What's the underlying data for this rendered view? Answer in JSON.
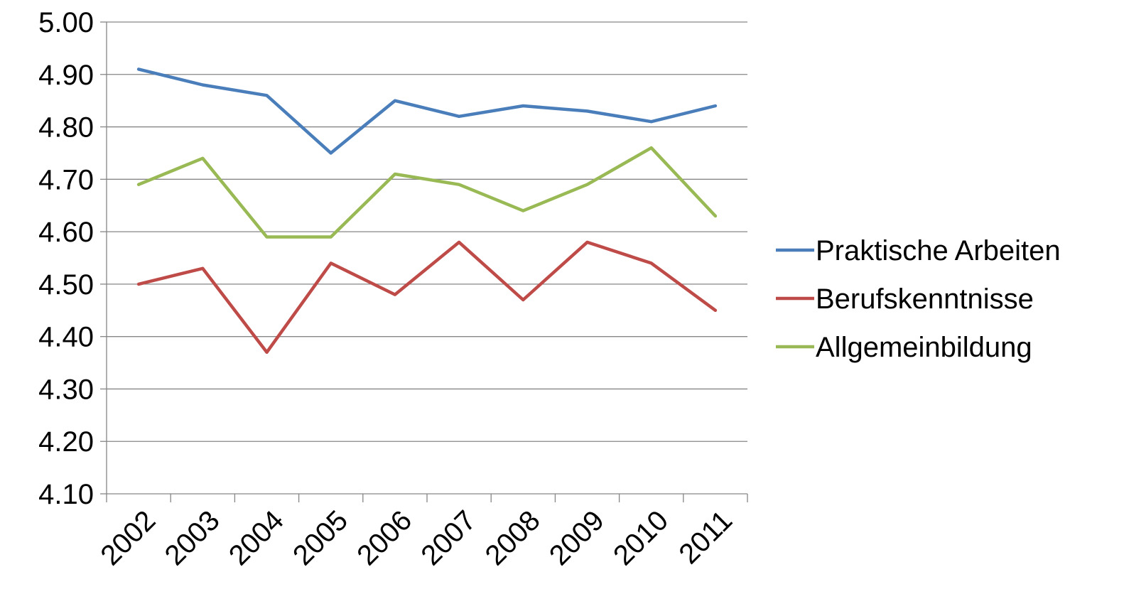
{
  "chart_data": {
    "type": "line",
    "title": "",
    "xlabel": "",
    "ylabel": "",
    "categories": [
      "2002",
      "2003",
      "2004",
      "2005",
      "2006",
      "2007",
      "2008",
      "2009",
      "2010",
      "2011"
    ],
    "ylim": [
      4.1,
      5.0
    ],
    "yticks": [
      "4.10",
      "4.20",
      "4.30",
      "4.40",
      "4.50",
      "4.60",
      "4.70",
      "4.80",
      "4.90",
      "5.00"
    ],
    "grid": true,
    "legend": "right",
    "series": [
      {
        "name": "Praktische Arbeiten",
        "color": "#4a7ebb",
        "values": [
          4.91,
          4.88,
          4.86,
          4.75,
          4.85,
          4.82,
          4.84,
          4.83,
          4.81,
          4.84
        ]
      },
      {
        "name": "Berufskenntnisse",
        "color": "#be4b48",
        "values": [
          4.5,
          4.53,
          4.37,
          4.54,
          4.48,
          4.58,
          4.47,
          4.58,
          4.54,
          4.45
        ]
      },
      {
        "name": "Allgemeinbildung",
        "color": "#98b954",
        "values": [
          4.69,
          4.74,
          4.59,
          4.59,
          4.71,
          4.69,
          4.64,
          4.69,
          4.76,
          4.63
        ]
      }
    ]
  }
}
